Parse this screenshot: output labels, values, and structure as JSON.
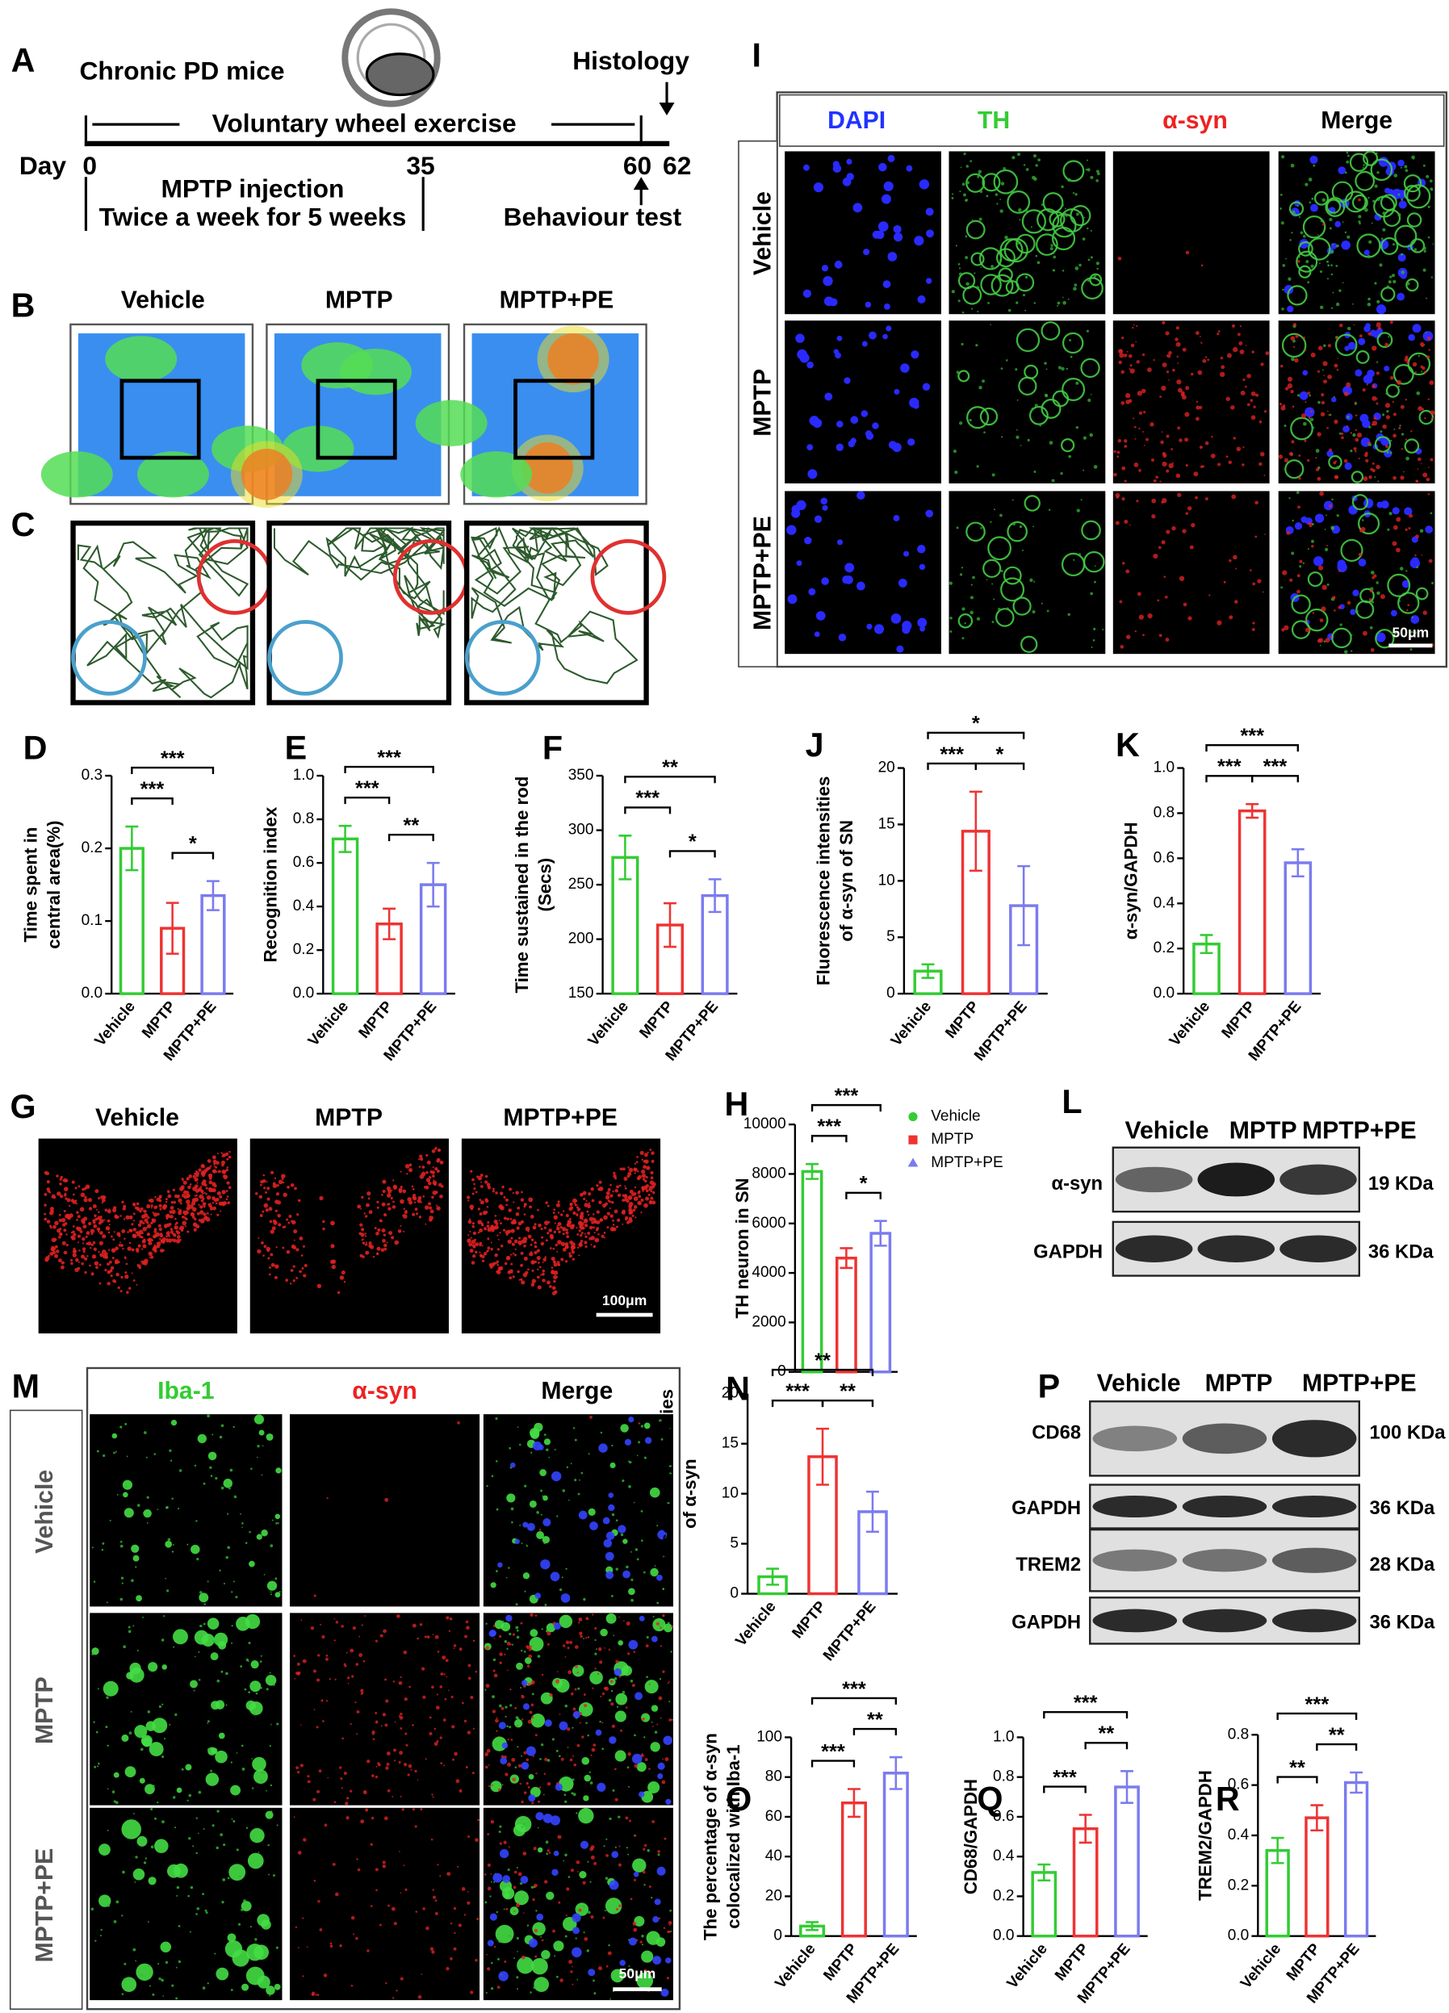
{
  "panel_a": {
    "label": "A",
    "title": "Chronic PD mice",
    "exercise": "Voluntary wheel exercise",
    "histology": "Histology",
    "day": "Day",
    "day_ticks": [
      "0",
      "35",
      "60",
      "62"
    ],
    "injection": "MPTP injection",
    "schedule": "Twice a week for 5 weeks",
    "behaviour": "Behaviour test"
  },
  "panel_b": {
    "label": "B",
    "groups": [
      "Vehicle",
      "MPTP",
      "MPTP+PE"
    ]
  },
  "panel_c": {
    "label": "C"
  },
  "panel_g": {
    "label": "G",
    "groups": [
      "Vehicle",
      "MPTP",
      "MPTP+PE"
    ],
    "scale_bar": "100μm"
  },
  "panel_i": {
    "label": "I",
    "channels": [
      "DAPI",
      "TH",
      "α-syn",
      "Merge"
    ],
    "groups": [
      "Vehicle",
      "MPTP",
      "MPTP+PE"
    ],
    "scale_bar": "50μm"
  },
  "panel_l": {
    "label": "L",
    "groups": [
      "Vehicle",
      "MPTP",
      "MPTP+PE"
    ],
    "bands": [
      {
        "name": "α-syn",
        "size": "19 KDa"
      },
      {
        "name": "GAPDH",
        "size": "36 KDa"
      }
    ]
  },
  "panel_m": {
    "label": "M",
    "channels": [
      "Iba-1",
      "α-syn",
      "Merge"
    ],
    "groups": [
      "Vehicle",
      "MPTP",
      "MPTP+PE"
    ],
    "scale_bar": "50μm"
  },
  "panel_p": {
    "label": "P",
    "groups": [
      "Vehicle",
      "MPTP",
      "MPTP+PE"
    ],
    "bands": [
      {
        "name": "CD68",
        "size": "100 KDa"
      },
      {
        "name": "GAPDH",
        "size": "36 KDa"
      },
      {
        "name": "TREM2",
        "size": "28 KDa"
      },
      {
        "name": "GAPDH",
        "size": "36 KDa"
      }
    ]
  },
  "chart_data": [
    {
      "type": "bar",
      "label": "D",
      "ylabel": [
        "Time spent in",
        "central area(%)"
      ],
      "categories": [
        "Vehicle",
        "MPTP",
        "MPTP+PE"
      ],
      "values": [
        0.2,
        0.09,
        0.135
      ],
      "errors": [
        0.03,
        0.035,
        0.02
      ],
      "colors": [
        "#33cc33",
        "#ee3333",
        "#7b7bf0"
      ],
      "ylim": [
        0,
        0.3
      ],
      "yticks": [
        {
          "value": 0,
          "label": "0.0"
        },
        0.1,
        0.2,
        0.3
      ],
      "brackets": [
        {
          "text": "***",
          "between": [
            "Vehicle",
            "MPTP"
          ]
        },
        {
          "text": "*",
          "between": [
            "MPTP",
            "MPTP+PE"
          ]
        },
        {
          "text": "***",
          "between": [
            "Vehicle",
            "MPTP+PE"
          ]
        }
      ]
    },
    {
      "type": "bar",
      "label": "E",
      "ylabel": [
        "Recognition index"
      ],
      "categories": [
        "Vehicle",
        "MPTP",
        "MPTP+PE"
      ],
      "values": [
        0.71,
        0.32,
        0.5
      ],
      "errors": [
        0.06,
        0.07,
        0.1
      ],
      "colors": [
        "#33cc33",
        "#ee3333",
        "#7b7bf0"
      ],
      "ylim": [
        0,
        1
      ],
      "yticks": [
        {
          "value": 0,
          "label": "0.0"
        },
        0.2,
        0.4,
        0.6,
        0.8,
        {
          "value": 1,
          "label": "1.0"
        }
      ],
      "brackets": [
        {
          "text": "***",
          "between": [
            "Vehicle",
            "MPTP"
          ]
        },
        {
          "text": "**",
          "between": [
            "MPTP",
            "MPTP+PE"
          ]
        },
        {
          "text": "***",
          "between": [
            "Vehicle",
            "MPTP+PE"
          ]
        }
      ]
    },
    {
      "type": "bar",
      "label": "F",
      "ylabel": [
        "Time sustained in the rod",
        "(Secs)"
      ],
      "categories": [
        "Vehicle",
        "MPTP",
        "MPTP+PE"
      ],
      "values": [
        275,
        213,
        240
      ],
      "errors": [
        20,
        20,
        15
      ],
      "colors": [
        "#33cc33",
        "#ee3333",
        "#7b7bf0"
      ],
      "ylim": [
        150,
        350
      ],
      "yticks": [
        150,
        200,
        250,
        300,
        350
      ],
      "brackets": [
        {
          "text": "***",
          "between": [
            "Vehicle",
            "MPTP"
          ]
        },
        {
          "text": "*",
          "between": [
            "MPTP",
            "MPTP+PE"
          ]
        },
        {
          "text": "**",
          "between": [
            "Vehicle",
            "MPTP+PE"
          ]
        }
      ]
    },
    {
      "type": "bar",
      "label": "J",
      "ylabel": [
        "Fluorescence intensities",
        "of α-syn of SN"
      ],
      "categories": [
        "Vehicle",
        "MPTP",
        "MPTP+PE"
      ],
      "values": [
        2.0,
        14.4,
        7.8
      ],
      "errors": [
        0.6,
        3.5,
        3.5
      ],
      "colors": [
        "#33cc33",
        "#ee3333",
        "#7b7bf0"
      ],
      "ylim": [
        0,
        20
      ],
      "yticks": [
        0,
        5,
        10,
        15,
        20
      ],
      "brackets": [
        {
          "text": "***",
          "between": [
            "Vehicle",
            "MPTP"
          ]
        },
        {
          "text": "*",
          "between": [
            "MPTP",
            "MPTP+PE"
          ]
        },
        {
          "text": "*",
          "between": [
            "Vehicle",
            "MPTP+PE"
          ]
        }
      ]
    },
    {
      "type": "bar",
      "label": "K",
      "ylabel": [
        "α-syn/GAPDH"
      ],
      "categories": [
        "Vehicle",
        "MPTP",
        "MPTP+PE"
      ],
      "values": [
        0.22,
        0.81,
        0.58
      ],
      "errors": [
        0.04,
        0.03,
        0.06
      ],
      "colors": [
        "#33cc33",
        "#ee3333",
        "#7b7bf0"
      ],
      "ylim": [
        0,
        1
      ],
      "yticks": [
        {
          "value": 0,
          "label": "0.0"
        },
        0.2,
        0.4,
        0.6,
        0.8,
        {
          "value": 1,
          "label": "1.0"
        }
      ],
      "brackets": [
        {
          "text": "***",
          "between": [
            "Vehicle",
            "MPTP"
          ]
        },
        {
          "text": "***",
          "between": [
            "MPTP",
            "MPTP+PE"
          ]
        },
        {
          "text": "***",
          "between": [
            "Vehicle",
            "MPTP+PE"
          ]
        }
      ]
    },
    {
      "type": "bar",
      "label": "H",
      "ylabel": [
        "TH neuron in SN"
      ],
      "categories": [
        "Vehicle",
        "MPTP",
        "MPTP+PE"
      ],
      "values": [
        8100,
        4600,
        5600
      ],
      "errors": [
        300,
        400,
        500
      ],
      "colors": [
        "#33cc33",
        "#ee3333",
        "#7b7bf0"
      ],
      "ylim": [
        0,
        10000
      ],
      "yticks": [
        0,
        2000,
        4000,
        6000,
        8000,
        10000
      ],
      "legend": "right",
      "brackets": [
        {
          "text": "***",
          "between": [
            "Vehicle",
            "MPTP"
          ]
        },
        {
          "text": "*",
          "between": [
            "MPTP",
            "MPTP+PE"
          ]
        },
        {
          "text": "***",
          "between": [
            "Vehicle",
            "MPTP+PE"
          ]
        }
      ]
    },
    {
      "type": "bar",
      "label": "N",
      "ylabel": [
        "Fluorescence intensities",
        "of α-syn"
      ],
      "categories": [
        "Vehicle",
        "MPTP",
        "MPTP+PE"
      ],
      "values": [
        1.7,
        13.7,
        8.2
      ],
      "errors": [
        0.8,
        2.8,
        2.0
      ],
      "colors": [
        "#33cc33",
        "#ee3333",
        "#7b7bf0"
      ],
      "ylim": [
        0,
        20
      ],
      "yticks": [
        0,
        5,
        10,
        15,
        20
      ],
      "brackets": [
        {
          "text": "***",
          "between": [
            "Vehicle",
            "MPTP"
          ]
        },
        {
          "text": "**",
          "between": [
            "MPTP",
            "MPTP+PE"
          ]
        },
        {
          "text": "**",
          "between": [
            "Vehicle",
            "MPTP+PE"
          ]
        }
      ]
    },
    {
      "type": "bar",
      "label": "O",
      "ylabel": [
        "The percentage of α-syn",
        "colocalized with Iba-1"
      ],
      "categories": [
        "Vehicle",
        "MPTP",
        "MPTP+PE"
      ],
      "values": [
        5,
        67,
        82
      ],
      "errors": [
        2,
        7,
        8
      ],
      "colors": [
        "#33cc33",
        "#ee3333",
        "#7b7bf0"
      ],
      "ylim": [
        0,
        100
      ],
      "yticks": [
        0,
        20,
        40,
        60,
        80,
        100
      ],
      "brackets": [
        {
          "text": "***",
          "between": [
            "Vehicle",
            "MPTP"
          ]
        },
        {
          "text": "**",
          "between": [
            "MPTP",
            "MPTP+PE"
          ]
        },
        {
          "text": "***",
          "between": [
            "Vehicle",
            "MPTP+PE"
          ]
        }
      ]
    },
    {
      "type": "bar",
      "label": "Q",
      "ylabel": [
        "CD68/GAPDH"
      ],
      "categories": [
        "Vehicle",
        "MPTP",
        "MPTP+PE"
      ],
      "values": [
        0.32,
        0.54,
        0.75
      ],
      "errors": [
        0.04,
        0.07,
        0.08
      ],
      "colors": [
        "#33cc33",
        "#ee3333",
        "#7b7bf0"
      ],
      "ylim": [
        0,
        1
      ],
      "yticks": [
        {
          "value": 0,
          "label": "0.0"
        },
        0.2,
        0.4,
        0.6,
        0.8,
        {
          "value": 1,
          "label": "1.0"
        }
      ],
      "brackets": [
        {
          "text": "***",
          "between": [
            "Vehicle",
            "MPTP"
          ]
        },
        {
          "text": "**",
          "between": [
            "MPTP",
            "MPTP+PE"
          ]
        },
        {
          "text": "***",
          "between": [
            "Vehicle",
            "MPTP+PE"
          ]
        }
      ]
    },
    {
      "type": "bar",
      "label": "R",
      "ylabel": [
        "TREM2/GAPDH"
      ],
      "categories": [
        "Vehicle",
        "MPTP",
        "MPTP+PE"
      ],
      "values": [
        0.34,
        0.47,
        0.61
      ],
      "errors": [
        0.05,
        0.05,
        0.04
      ],
      "colors": [
        "#33cc33",
        "#ee3333",
        "#7b7bf0"
      ],
      "ylim": [
        0,
        0.8
      ],
      "yticks": [
        {
          "value": 0,
          "label": "0.0"
        },
        0.2,
        0.4,
        0.6,
        0.8
      ],
      "brackets": [
        {
          "text": "**",
          "between": [
            "Vehicle",
            "MPTP"
          ]
        },
        {
          "text": "**",
          "between": [
            "MPTP",
            "MPTP+PE"
          ]
        },
        {
          "text": "***",
          "between": [
            "Vehicle",
            "MPTP+PE"
          ]
        }
      ]
    }
  ]
}
